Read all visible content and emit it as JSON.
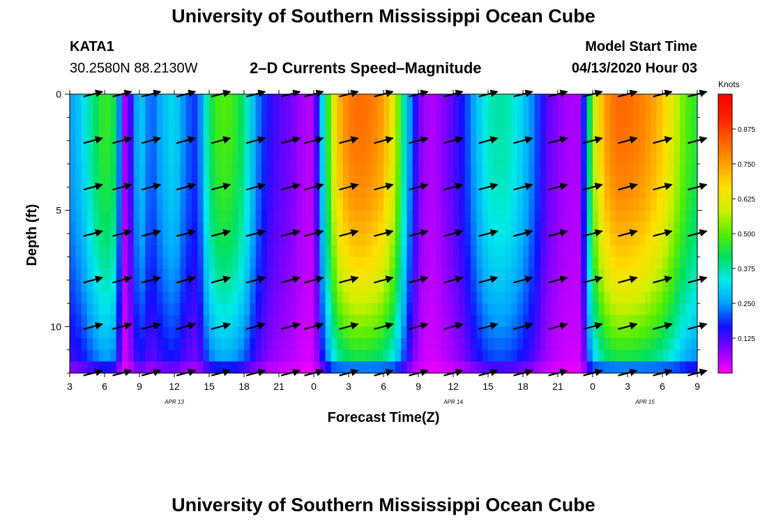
{
  "page": {
    "title_top": "University of Southern Mississippi Ocean Cube",
    "title_bottom": "University of Southern Mississippi Ocean Cube"
  },
  "header": {
    "station_id": "KATA1",
    "coordinates": "30.2580N 88.2130W",
    "plot_title": "2–D Currents Speed–Magnitude",
    "model_start_label": "Model Start Time",
    "model_start_value": "04/13/2020 Hour 03"
  },
  "colors": {
    "vector": "#000000",
    "scale": [
      "#ff00ff",
      "#8800ff",
      "#1010ff",
      "#00a0ff",
      "#00eaea",
      "#00e060",
      "#55ee00",
      "#ccf000",
      "#ffe000",
      "#ffa000",
      "#ff6000",
      "#ff2000",
      "#ff0000"
    ]
  },
  "chart_data": {
    "type": "heatmap",
    "title": "2–D Currents Speed–Magnitude",
    "xlabel": "Forecast Time(Z)",
    "ylabel": "Depth (ft)",
    "x_unit": "forecast hour since Apr 13 00Z",
    "xlim": [
      3,
      57
    ],
    "ylim": [
      0,
      12
    ],
    "y_inverted": true,
    "x_ticks": [
      3,
      6,
      9,
      12,
      15,
      18,
      21,
      24,
      27,
      30,
      33,
      36,
      39,
      42,
      45,
      48,
      51,
      54,
      57
    ],
    "x_tick_labels": [
      "3",
      "6",
      "9",
      "12",
      "15",
      "18",
      "21",
      "0",
      "3",
      "6",
      "9",
      "12",
      "15",
      "18",
      "21",
      "0",
      "3",
      "6",
      "9"
    ],
    "y_ticks": [
      0,
      5,
      10
    ],
    "y_tick_labels": [
      "0",
      "5",
      "10"
    ],
    "date_labels": [
      {
        "x": 12,
        "text": "APR 13"
      },
      {
        "x": 36,
        "text": "APR 14"
      },
      {
        "x": 52.5,
        "text": "APR 15"
      }
    ],
    "colorbar": {
      "label": "Knots",
      "range": [
        0.0,
        1.0
      ],
      "ticks": [
        0.125,
        0.25,
        0.375,
        0.5,
        0.625,
        0.75,
        0.875
      ],
      "tick_labels": [
        "0.125",
        "0.250",
        "0.375",
        "0.500",
        "0.625",
        "0.750",
        "0.875"
      ]
    },
    "speed_model": {
      "hours": [
        3,
        4,
        5,
        6,
        7,
        7.5,
        8,
        9,
        10,
        11,
        12,
        13,
        14,
        15,
        16,
        17,
        18,
        19,
        20,
        21,
        22,
        23,
        24,
        25,
        26,
        27,
        28,
        29,
        30,
        31,
        32,
        33,
        34,
        35,
        36,
        37,
        38,
        39,
        40,
        41,
        42,
        43,
        44,
        45,
        46,
        47,
        48,
        49,
        50,
        51,
        52,
        53,
        54,
        55,
        56,
        57
      ],
      "surface_knots": [
        0.25,
        0.3,
        0.4,
        0.48,
        0.42,
        0.05,
        0.08,
        0.32,
        0.2,
        0.28,
        0.32,
        0.22,
        0.18,
        0.42,
        0.5,
        0.48,
        0.4,
        0.25,
        0.16,
        0.12,
        0.1,
        0.06,
        0.05,
        0.4,
        0.7,
        0.8,
        0.82,
        0.8,
        0.75,
        0.6,
        0.3,
        0.1,
        0.05,
        0.08,
        0.12,
        0.18,
        0.28,
        0.36,
        0.38,
        0.36,
        0.3,
        0.22,
        0.12,
        0.08,
        0.06,
        0.06,
        0.55,
        0.75,
        0.82,
        0.82,
        0.8,
        0.76,
        0.7,
        0.6,
        0.5,
        0.45
      ],
      "deep_zero_depth_ft": 12.2,
      "bottom_layer_depth_ft": 11.5,
      "bottom_layer_knots": 0.15
    },
    "vectors": {
      "depths_ft": [
        0,
        2,
        4,
        6,
        8,
        10,
        12
      ],
      "hours": [
        5,
        7.5,
        10,
        13,
        16,
        19,
        22,
        24,
        27,
        30,
        33,
        36,
        39,
        42,
        45,
        48,
        51,
        54,
        57
      ],
      "direction_deg_ccw_from_east": 15
    }
  }
}
